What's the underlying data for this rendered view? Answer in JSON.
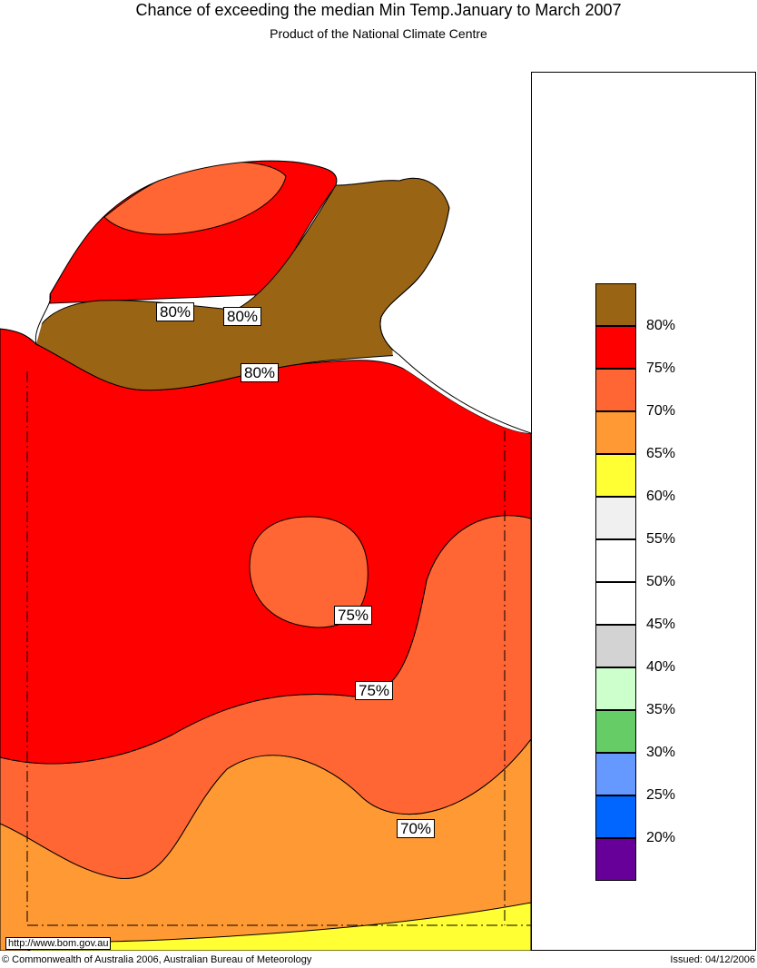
{
  "header": {
    "title": "Chance of exceeding the median Min Temp.January to March 2007",
    "subtitle": "Product of the National Climate Centre"
  },
  "colors": {
    "brown": "#996515",
    "red": "#ff0000",
    "orange_red": "#ff6633",
    "orange": "#ff9933",
    "yellow": "#ffff33"
  },
  "contour_labels": [
    "80%",
    "80%",
    "80%",
    "75%",
    "75%",
    "70%"
  ],
  "legend": {
    "entries": [
      {
        "color": "#996515",
        "label": "80%"
      },
      {
        "color": "#ff0000",
        "label": "75%"
      },
      {
        "color": "#ff6633",
        "label": "70%"
      },
      {
        "color": "#ff9933",
        "label": "65%"
      },
      {
        "color": "#ffff33",
        "label": "60%"
      },
      {
        "color": "#f0f0f0",
        "label": "55%"
      },
      {
        "color": "#ffffff",
        "label": "50%"
      },
      {
        "color": "#ffffff",
        "label": "45%"
      },
      {
        "color": "#d3d3d3",
        "label": "40%"
      },
      {
        "color": "#ccffcc",
        "label": "35%"
      },
      {
        "color": "#66cc66",
        "label": "30%"
      },
      {
        "color": "#6699ff",
        "label": "25%"
      },
      {
        "color": "#0066ff",
        "label": "20%"
      },
      {
        "color": "#660099",
        "label": ""
      }
    ]
  },
  "footer": {
    "url": "http://www.bom.gov.au",
    "copyright": "© Commonwealth of Australia 2006, Australian Bureau of Meteorology",
    "issued": "Issued: 04/12/2006"
  }
}
